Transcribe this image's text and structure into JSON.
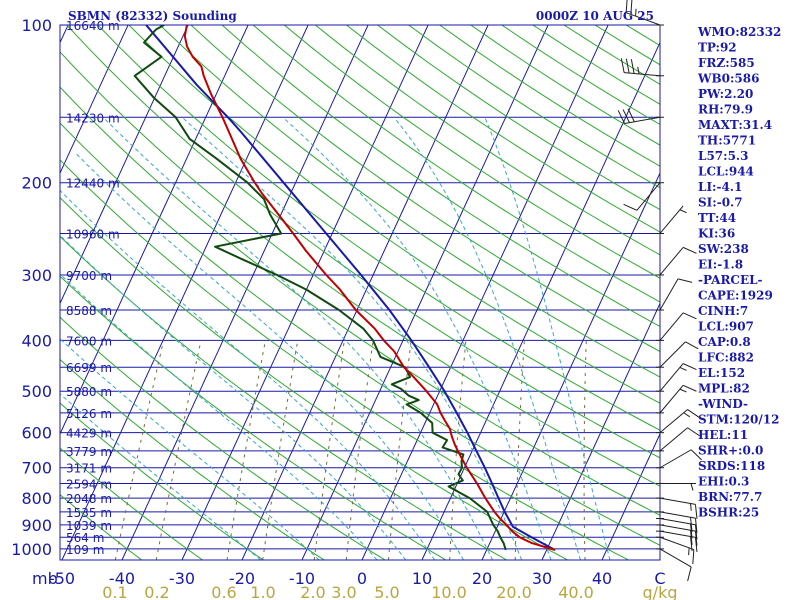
{
  "title": {
    "left": "SBMN (82332) Sounding",
    "right": "0000Z 10 AUG 25"
  },
  "colors": {
    "frame": "#1a1aa8",
    "isotherm": "#1a1aa8",
    "dry_adiabat": "#2faa2f",
    "moist_adiabat": "#38a8c8",
    "mixing_ratio": "#7a6a38",
    "temperature": "#c00000",
    "dewpoint": "#104a10",
    "parcel": "#1a1aa8",
    "text": "#1a1aa8",
    "mixing_label": "#b8a640",
    "wind": "#202020"
  },
  "indices": [
    "WMO:82332",
    "TP:92",
    "FRZ:585",
    "WB0:586",
    "PW:2.20",
    "RH:79.9",
    "MAXT:31.4",
    "TH:5771",
    "L57:5.3",
    "LCL:944",
    "LI:-4.1",
    "SI:-0.7",
    "TT:44",
    "KI:36",
    "SW:238",
    "EI:-1.8",
    "-PARCEL-",
    "CAPE:1929",
    "CINH:7",
    "LCL:907",
    "CAP:0.8",
    "LFC:882",
    "EL:152",
    "MPL:82",
    "-WIND-",
    "STM:120/12",
    "HEL:11",
    "SHR+:0.0",
    "SRDS:118",
    "EHI:0.3",
    "BRN:77.7",
    "BSHR:25"
  ],
  "chart_data": {
    "type": "skew-t",
    "y_scale": "log-pressure",
    "ylim_hpa": [
      100,
      1050
    ],
    "xlim_c": [
      -50,
      40
    ],
    "grid": true,
    "xlabel": "",
    "ylabel": "mb",
    "pressure_ticks": [
      "100",
      "200",
      "300",
      "400",
      "500",
      "600",
      "700",
      "800",
      "900",
      "1000"
    ],
    "temperature_ticks": [
      "-50",
      "-40",
      "-30",
      "-20",
      "-10",
      "0",
      "10",
      "20",
      "30",
      "40",
      "C"
    ],
    "mixing_ratio_labels": [
      "0.1",
      "0.2",
      "0.6",
      "1.0",
      "2.0",
      "3.0",
      "5.0",
      "10.0",
      "20.0",
      "40.0",
      "g/kg"
    ],
    "heights": [
      {
        "p": 100,
        "label": "16640 m"
      },
      {
        "p": 150,
        "label": "14230 m"
      },
      {
        "p": 200,
        "label": "12440 m"
      },
      {
        "p": 250,
        "label": "10960 m"
      },
      {
        "p": 300,
        "label": "9700 m"
      },
      {
        "p": 350,
        "label": "8588 m"
      },
      {
        "p": 400,
        "label": "7600 m"
      },
      {
        "p": 450,
        "label": "6699 m"
      },
      {
        "p": 500,
        "label": "5880 m"
      },
      {
        "p": 550,
        "label": "5126 m"
      },
      {
        "p": 600,
        "label": "4429 m"
      },
      {
        "p": 650,
        "label": "3779 m"
      },
      {
        "p": 700,
        "label": "3171 m"
      },
      {
        "p": 750,
        "label": "2594 m"
      },
      {
        "p": 800,
        "label": "2048 m"
      },
      {
        "p": 850,
        "label": "1535 m"
      },
      {
        "p": 900,
        "label": "1039 m"
      },
      {
        "p": 950,
        "label": "564 m"
      },
      {
        "p": 1000,
        "label": "109 m"
      }
    ],
    "temperature_profile": [
      [
        1005,
        31.4
      ],
      [
        975,
        27
      ],
      [
        950,
        24.5
      ],
      [
        925,
        22.8
      ],
      [
        900,
        21.4
      ],
      [
        875,
        19.8
      ],
      [
        850,
        18.4
      ],
      [
        800,
        15.8
      ],
      [
        750,
        13.3
      ],
      [
        700,
        10.4
      ],
      [
        650,
        7.6
      ],
      [
        630,
        6.5
      ],
      [
        610,
        5.5
      ],
      [
        590,
        4.6
      ],
      [
        570,
        3.2
      ],
      [
        550,
        1.8
      ],
      [
        530,
        0.6
      ],
      [
        500,
        -2.2
      ],
      [
        470,
        -5.4
      ],
      [
        450,
        -7.8
      ],
      [
        420,
        -10.6
      ],
      [
        400,
        -13.2
      ],
      [
        380,
        -15.6
      ],
      [
        350,
        -20.2
      ],
      [
        320,
        -24.4
      ],
      [
        300,
        -27.8
      ],
      [
        270,
        -33
      ],
      [
        250,
        -36.5
      ],
      [
        230,
        -40.4
      ],
      [
        210,
        -44.7
      ],
      [
        200,
        -46.8
      ],
      [
        180,
        -51
      ],
      [
        160,
        -55
      ],
      [
        150,
        -57.2
      ],
      [
        135,
        -61
      ],
      [
        125,
        -63.5
      ],
      [
        120,
        -64.6
      ],
      [
        115,
        -66.8
      ],
      [
        110,
        -68.5
      ],
      [
        105,
        -69.7
      ],
      [
        100,
        -70.2
      ]
    ],
    "dewpoint_profile": [
      [
        1005,
        23.2
      ],
      [
        975,
        22.3
      ],
      [
        950,
        21.3
      ],
      [
        925,
        20.4
      ],
      [
        900,
        19.2
      ],
      [
        875,
        18.2
      ],
      [
        850,
        17.2
      ],
      [
        800,
        13.2
      ],
      [
        760,
        8.8
      ],
      [
        740,
        10.7
      ],
      [
        720,
        9.5
      ],
      [
        700,
        9.6
      ],
      [
        680,
        9
      ],
      [
        660,
        8.8
      ],
      [
        640,
        4.8
      ],
      [
        620,
        5
      ],
      [
        600,
        2
      ],
      [
        575,
        1.2
      ],
      [
        550,
        -1.5
      ],
      [
        530,
        -4.5
      ],
      [
        520,
        -2.8
      ],
      [
        510,
        -4.8
      ],
      [
        495,
        -6.6
      ],
      [
        485,
        -8.5
      ],
      [
        470,
        -6
      ],
      [
        450,
        -7.6
      ],
      [
        430,
        -12.5
      ],
      [
        400,
        -15
      ],
      [
        380,
        -17.5
      ],
      [
        350,
        -23
      ],
      [
        320,
        -30
      ],
      [
        300,
        -36
      ],
      [
        280,
        -43
      ],
      [
        265,
        -48.5
      ],
      [
        250,
        -38.5
      ],
      [
        230,
        -41.8
      ],
      [
        215,
        -44
      ],
      [
        200,
        -48
      ],
      [
        180,
        -55
      ],
      [
        165,
        -61
      ],
      [
        150,
        -65
      ],
      [
        138,
        -70
      ],
      [
        125,
        -75
      ],
      [
        115,
        -72
      ],
      [
        108,
        -76
      ],
      [
        102,
        -75
      ],
      [
        100,
        -74
      ]
    ],
    "parcel_profile": [
      [
        1005,
        31.4
      ],
      [
        950,
        26.5
      ],
      [
        907,
        22.6
      ],
      [
        850,
        20.1
      ],
      [
        800,
        18
      ],
      [
        750,
        15.8
      ],
      [
        700,
        13.4
      ],
      [
        650,
        10.7
      ],
      [
        600,
        7.8
      ],
      [
        550,
        4.5
      ],
      [
        500,
        0.8
      ],
      [
        450,
        -3.6
      ],
      [
        400,
        -8.6
      ],
      [
        350,
        -14.6
      ],
      [
        300,
        -22
      ],
      [
        250,
        -31
      ],
      [
        200,
        -42
      ],
      [
        160,
        -53
      ],
      [
        152,
        -55.6
      ],
      [
        130,
        -64
      ],
      [
        100,
        -77
      ]
    ],
    "winds": [
      {
        "p": 1000,
        "dir": 120,
        "spd": 10
      },
      {
        "p": 950,
        "dir": 110,
        "spd": 15
      },
      {
        "p": 925,
        "dir": 100,
        "spd": 20
      },
      {
        "p": 900,
        "dir": 100,
        "spd": 20
      },
      {
        "p": 875,
        "dir": 100,
        "spd": 20
      },
      {
        "p": 850,
        "dir": 100,
        "spd": 20
      },
      {
        "p": 800,
        "dir": 100,
        "spd": 15
      },
      {
        "p": 750,
        "dir": 90,
        "spd": 5
      },
      {
        "p": 700,
        "dir": 60,
        "spd": 10
      },
      {
        "p": 650,
        "dir": 50,
        "spd": 10
      },
      {
        "p": 600,
        "dir": 50,
        "spd": 15
      },
      {
        "p": 550,
        "dir": 40,
        "spd": 15
      },
      {
        "p": 500,
        "dir": 40,
        "spd": 15
      },
      {
        "p": 450,
        "dir": 45,
        "spd": 10
      },
      {
        "p": 400,
        "dir": 40,
        "spd": 10
      },
      {
        "p": 350,
        "dir": 30,
        "spd": 10
      },
      {
        "p": 300,
        "dir": 40,
        "spd": 10
      },
      {
        "p": 250,
        "dir": 40,
        "spd": 5
      },
      {
        "p": 200,
        "dir": 220,
        "spd": 10
      },
      {
        "p": 150,
        "dir": 260,
        "spd": 30
      },
      {
        "p": 125,
        "dir": 275,
        "spd": 35
      },
      {
        "p": 100,
        "dir": 290,
        "spd": 25
      }
    ]
  }
}
